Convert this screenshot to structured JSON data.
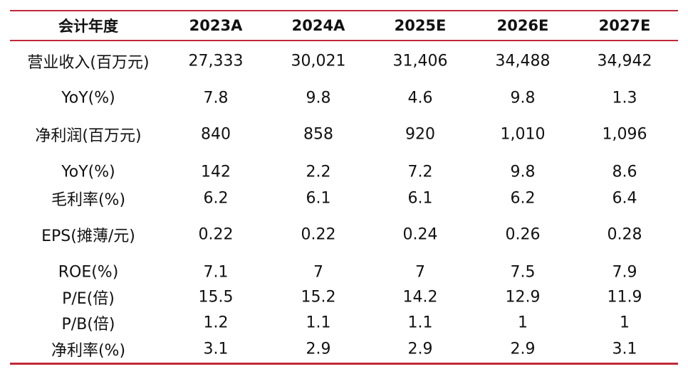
{
  "table": {
    "headers": [
      "会计年度",
      "2023A",
      "2024A",
      "2025E",
      "2026E",
      "2027E"
    ],
    "rows": [
      {
        "label": "营业收入(百万元)",
        "values": [
          "27,333",
          "30,021",
          "31,406",
          "34,488",
          "34,942"
        ]
      },
      {
        "label": "YoY(%)",
        "values": [
          "7.8",
          "9.8",
          "4.6",
          "9.8",
          "1.3"
        ]
      },
      {
        "label": "净利润(百万元)",
        "values": [
          "840",
          "858",
          "920",
          "1,010",
          "1,096"
        ]
      },
      {
        "label": "YoY(%)",
        "values": [
          "142",
          "2.2",
          "7.2",
          "9.8",
          "8.6"
        ]
      },
      {
        "label": "毛利率(%)",
        "values": [
          "6.2",
          "6.1",
          "6.1",
          "6.2",
          "6.4"
        ]
      },
      {
        "label": "EPS(摊薄/元)",
        "values": [
          "0.22",
          "0.22",
          "0.24",
          "0.26",
          "0.28"
        ]
      },
      {
        "label": "ROE(%)",
        "values": [
          "7.1",
          "7",
          "7",
          "7.5",
          "7.9"
        ]
      },
      {
        "label": "P/E(倍)",
        "values": [
          "15.5",
          "15.2",
          "14.2",
          "12.9",
          "11.9"
        ]
      },
      {
        "label": "P/B(倍)",
        "values": [
          "1.2",
          "1.1",
          "1.1",
          "1",
          "1"
        ]
      },
      {
        "label": "净利率(%)",
        "values": [
          "3.1",
          "2.9",
          "2.9",
          "2.9",
          "3.1"
        ]
      }
    ],
    "rule_color": "#c0283a"
  }
}
